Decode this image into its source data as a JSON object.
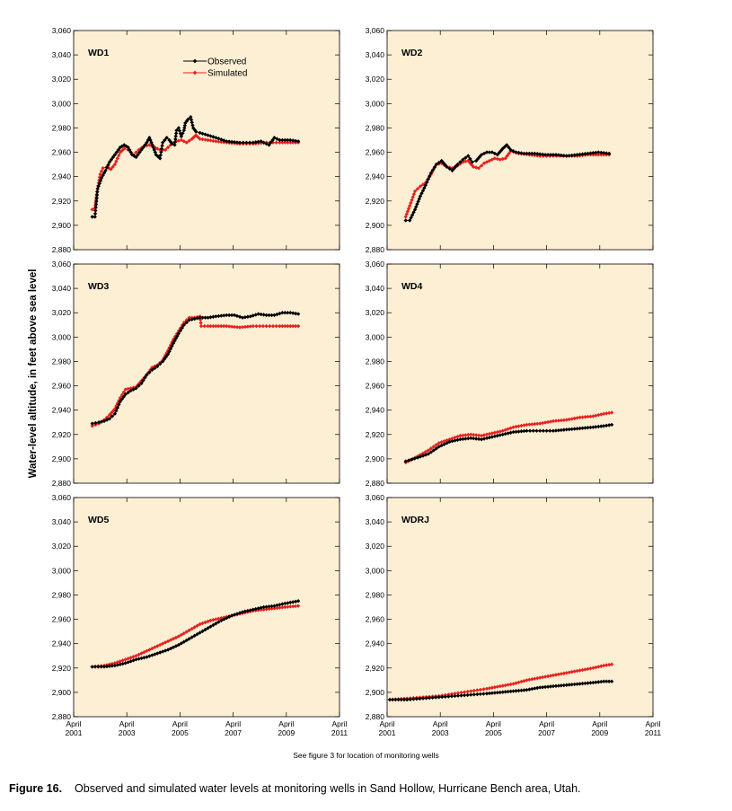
{
  "figure": {
    "ylabel": "Water-level altitude, in feet above sea level",
    "note": "See figure 3 for location of monitoring wells",
    "caption_number": "Figure 16.",
    "caption_text": "Observed and simulated water levels at monitoring wells in Sand Hollow, Hurricane Bench area, Utah."
  },
  "colors": {
    "observed": "#000000",
    "simulated": "#e8211e",
    "plot_bg": "#fcefd4",
    "frame": "#000000"
  },
  "chart_data": [
    {
      "type": "line",
      "title": "WD1",
      "xlim": [
        2001.25,
        2011.25
      ],
      "ylim": [
        2880,
        3060
      ],
      "yticks": [
        2880,
        2900,
        2920,
        2940,
        2960,
        2980,
        3000,
        3020,
        3040,
        3060
      ],
      "ytick_labels": [
        "2,880",
        "2,900",
        "2,920",
        "2,940",
        "2,960",
        "2,980",
        "3,000",
        "3,020",
        "3,040",
        "3,060"
      ],
      "legend": {
        "position": "top-center",
        "entries": [
          "Observed",
          "Simulated"
        ]
      },
      "series": [
        {
          "name": "Observed",
          "x": [
            2001.95,
            2002.05,
            2002.15,
            2002.3,
            2002.45,
            2002.6,
            2002.8,
            2003.0,
            2003.15,
            2003.3,
            2003.45,
            2003.6,
            2003.8,
            2004.0,
            2004.1,
            2004.25,
            2004.35,
            2004.5,
            2004.6,
            2004.75,
            2004.85,
            2004.95,
            2005.05,
            2005.12,
            2005.2,
            2005.3,
            2005.4,
            2005.45,
            2005.55,
            2005.65,
            2005.75,
            2005.85,
            2006.0,
            2006.3,
            2006.6,
            2007.0,
            2007.5,
            2008.0,
            2008.3,
            2008.5,
            2008.6,
            2008.8,
            2009.0,
            2009.4,
            2009.7
          ],
          "values": [
            2907,
            2907,
            2930,
            2939,
            2945,
            2952,
            2958,
            2964,
            2966,
            2964,
            2958,
            2956,
            2962,
            2968,
            2972,
            2964,
            2958,
            2955,
            2968,
            2972,
            2970,
            2967,
            2966,
            2978,
            2980,
            2973,
            2978,
            2984,
            2987,
            2989,
            2980,
            2977,
            2976,
            2974,
            2972,
            2969,
            2968,
            2968,
            2969,
            2967,
            2966,
            2972,
            2970,
            2970,
            2969
          ]
        },
        {
          "name": "Simulated",
          "x": [
            2001.95,
            2002.05,
            2002.15,
            2002.25,
            2002.35,
            2002.5,
            2002.65,
            2002.8,
            2003.0,
            2003.15,
            2003.3,
            2003.5,
            2003.7,
            2003.9,
            2004.1,
            2004.3,
            2004.5,
            2004.7,
            2004.9,
            2005.1,
            2005.3,
            2005.5,
            2005.7,
            2005.85,
            2006.0,
            2006.3,
            2006.6,
            2007.0,
            2007.5,
            2008.0,
            2008.5,
            2009.0,
            2009.4,
            2009.7
          ],
          "values": [
            2913,
            2914,
            2930,
            2942,
            2947,
            2948,
            2946,
            2950,
            2960,
            2963,
            2962,
            2958,
            2962,
            2965,
            2966,
            2964,
            2962,
            2962,
            2966,
            2969,
            2970,
            2968,
            2971,
            2974,
            2971,
            2970,
            2969,
            2968,
            2967,
            2967,
            2968,
            2968,
            2968,
            2968
          ]
        }
      ]
    },
    {
      "type": "line",
      "title": "WD2",
      "xlim": [
        2001.25,
        2011.25
      ],
      "ylim": [
        2880,
        3060
      ],
      "yticks": [
        2880,
        2900,
        2920,
        2940,
        2960,
        2980,
        3000,
        3020,
        3040,
        3060
      ],
      "ytick_labels": [
        "2,880",
        "2,900",
        "2,920",
        "2,940",
        "2,960",
        "2,980",
        "3,000",
        "3,020",
        "3,040",
        "3,060"
      ],
      "series": [
        {
          "name": "Observed",
          "x": [
            2001.95,
            2002.1,
            2002.3,
            2002.5,
            2002.7,
            2002.9,
            2003.1,
            2003.3,
            2003.5,
            2003.7,
            2003.9,
            2004.1,
            2004.3,
            2004.45,
            2004.6,
            2004.8,
            2005.0,
            2005.2,
            2005.4,
            2005.6,
            2005.75,
            2005.9,
            2006.1,
            2006.4,
            2006.8,
            2007.2,
            2007.6,
            2008.0,
            2008.4,
            2008.8,
            2009.2,
            2009.6
          ],
          "values": [
            2904,
            2904,
            2913,
            2924,
            2933,
            2943,
            2950,
            2953,
            2948,
            2945,
            2950,
            2954,
            2957,
            2952,
            2953,
            2958,
            2960,
            2960,
            2958,
            2963,
            2966,
            2962,
            2960,
            2959,
            2959,
            2958,
            2958,
            2957,
            2958,
            2959,
            2960,
            2959
          ]
        },
        {
          "name": "Simulated",
          "x": [
            2001.95,
            2002.1,
            2002.3,
            2002.5,
            2002.7,
            2002.9,
            2003.1,
            2003.3,
            2003.5,
            2003.7,
            2003.9,
            2004.1,
            2004.3,
            2004.5,
            2004.7,
            2004.9,
            2005.1,
            2005.3,
            2005.5,
            2005.7,
            2005.9,
            2006.2,
            2006.6,
            2007.0,
            2007.5,
            2008.0,
            2008.4,
            2008.8,
            2009.2,
            2009.6
          ],
          "values": [
            2907,
            2916,
            2928,
            2932,
            2935,
            2942,
            2950,
            2951,
            2948,
            2947,
            2949,
            2952,
            2953,
            2948,
            2947,
            2951,
            2953,
            2955,
            2954,
            2955,
            2961,
            2959,
            2958,
            2957,
            2957,
            2957,
            2957,
            2958,
            2958,
            2958
          ]
        }
      ]
    },
    {
      "type": "line",
      "title": "WD3",
      "xlim": [
        2001.25,
        2011.25
      ],
      "ylim": [
        2880,
        3060
      ],
      "yticks": [
        2880,
        2900,
        2920,
        2940,
        2960,
        2980,
        3000,
        3020,
        3040,
        3060
      ],
      "ytick_labels": [
        "2,880",
        "2,900",
        "2,920",
        "2,940",
        "2,960",
        "2,980",
        "3,000",
        "3,020",
        "3,040",
        "3,060"
      ],
      "series": [
        {
          "name": "Observed",
          "x": [
            2001.95,
            2002.2,
            2002.4,
            2002.6,
            2002.8,
            2003.0,
            2003.2,
            2003.4,
            2003.6,
            2003.8,
            2004.0,
            2004.2,
            2004.4,
            2004.6,
            2004.8,
            2005.0,
            2005.2,
            2005.4,
            2005.6,
            2005.8,
            2006.0,
            2006.3,
            2006.6,
            2007.0,
            2007.3,
            2007.6,
            2007.9,
            2008.2,
            2008.5,
            2008.8,
            2009.1,
            2009.4,
            2009.7
          ],
          "values": [
            2929,
            2930,
            2931,
            2933,
            2937,
            2947,
            2953,
            2956,
            2958,
            2962,
            2969,
            2973,
            2976,
            2980,
            2986,
            2995,
            3003,
            3010,
            3014,
            3015,
            3016,
            3016,
            3017,
            3018,
            3018,
            3016,
            3017,
            3019,
            3018,
            3018,
            3020,
            3020,
            3019
          ]
        },
        {
          "name": "Simulated",
          "x": [
            2001.95,
            2002.2,
            2002.4,
            2002.6,
            2002.8,
            2003.0,
            2003.2,
            2003.4,
            2003.6,
            2003.8,
            2004.0,
            2004.2,
            2004.4,
            2004.6,
            2004.8,
            2005.0,
            2005.2,
            2005.4,
            2005.6,
            2005.8,
            2006.0,
            2006.05,
            2006.3,
            2006.7,
            2007.0,
            2007.5,
            2008.0,
            2008.5,
            2009.0,
            2009.4,
            2009.7
          ],
          "values": [
            2927,
            2929,
            2932,
            2936,
            2941,
            2950,
            2957,
            2958,
            2959,
            2964,
            2969,
            2975,
            2977,
            2981,
            2989,
            2998,
            3005,
            3012,
            3016,
            3016,
            3017,
            3009,
            3009,
            3009,
            3009,
            3008,
            3009,
            3009,
            3009,
            3009,
            3009
          ]
        }
      ]
    },
    {
      "type": "line",
      "title": "WD4",
      "xlim": [
        2001.25,
        2011.25
      ],
      "ylim": [
        2880,
        3060
      ],
      "yticks": [
        2880,
        2900,
        2920,
        2940,
        2960,
        2980,
        3000,
        3020,
        3040,
        3060
      ],
      "ytick_labels": [
        "2,880",
        "2,900",
        "2,920",
        "2,940",
        "2,960",
        "2,980",
        "3,000",
        "3,020",
        "3,040",
        "3,060"
      ],
      "series": [
        {
          "name": "Observed",
          "x": [
            2001.95,
            2002.4,
            2002.8,
            2003.2,
            2003.6,
            2004.0,
            2004.4,
            2004.8,
            2005.2,
            2005.6,
            2006.0,
            2006.5,
            2007.0,
            2007.5,
            2008.0,
            2008.5,
            2009.0,
            2009.4,
            2009.7
          ],
          "values": [
            2898,
            2901,
            2904,
            2910,
            2914,
            2916,
            2917,
            2916,
            2918,
            2920,
            2922,
            2923,
            2923,
            2923,
            2924,
            2925,
            2926,
            2927,
            2928
          ]
        },
        {
          "name": "Simulated",
          "x": [
            2001.95,
            2002.4,
            2002.8,
            2003.2,
            2003.6,
            2004.0,
            2004.4,
            2004.8,
            2005.2,
            2005.6,
            2006.0,
            2006.5,
            2007.0,
            2007.5,
            2008.0,
            2008.5,
            2009.0,
            2009.4,
            2009.7
          ],
          "values": [
            2897,
            2902,
            2907,
            2913,
            2916,
            2919,
            2920,
            2919,
            2921,
            2923,
            2926,
            2928,
            2929,
            2931,
            2932,
            2934,
            2935,
            2937,
            2938
          ]
        }
      ]
    },
    {
      "type": "line",
      "title": "WD5",
      "xlim": [
        2001.25,
        2011.25
      ],
      "ylim": [
        2880,
        3060
      ],
      "yticks": [
        2880,
        2900,
        2920,
        2940,
        2960,
        2980,
        3000,
        3020,
        3040,
        3060
      ],
      "ytick_labels": [
        "2,880",
        "2,900",
        "2,920",
        "2,940",
        "2,960",
        "2,980",
        "3,000",
        "3,020",
        "3,040",
        "3,060"
      ],
      "series": [
        {
          "name": "Observed",
          "x": [
            2001.95,
            2002.4,
            2002.8,
            2003.2,
            2003.6,
            2004.0,
            2004.4,
            2004.8,
            2005.2,
            2005.6,
            2006.0,
            2006.4,
            2006.8,
            2007.2,
            2007.6,
            2008.0,
            2008.4,
            2008.8,
            2009.2,
            2009.7
          ],
          "values": [
            2921,
            2921,
            2922,
            2924,
            2927,
            2929,
            2932,
            2935,
            2939,
            2944,
            2949,
            2954,
            2959,
            2963,
            2966,
            2968,
            2970,
            2971,
            2973,
            2975
          ]
        },
        {
          "name": "Simulated",
          "x": [
            2001.95,
            2002.4,
            2002.8,
            2003.2,
            2003.6,
            2004.0,
            2004.4,
            2004.8,
            2005.2,
            2005.6,
            2006.0,
            2006.4,
            2006.8,
            2007.2,
            2007.6,
            2008.0,
            2008.4,
            2008.8,
            2009.2,
            2009.7
          ],
          "values": [
            2921,
            2922,
            2924,
            2927,
            2930,
            2934,
            2938,
            2942,
            2946,
            2951,
            2956,
            2959,
            2961,
            2963,
            2965,
            2967,
            2968,
            2969,
            2970,
            2971
          ]
        }
      ]
    },
    {
      "type": "line",
      "title": "WDRJ",
      "xlim": [
        2001.25,
        2011.25
      ],
      "ylim": [
        2880,
        3060
      ],
      "yticks": [
        2880,
        2900,
        2920,
        2940,
        2960,
        2980,
        3000,
        3020,
        3040,
        3060
      ],
      "ytick_labels": [
        "2,880",
        "2,900",
        "2,920",
        "2,940",
        "2,960",
        "2,980",
        "3,000",
        "3,020",
        "3,040",
        "3,060"
      ],
      "series": [
        {
          "name": "Observed",
          "x": [
            2001.35,
            2002.0,
            2002.6,
            2003.2,
            2003.8,
            2004.4,
            2005.0,
            2005.5,
            2006.0,
            2006.5,
            2007.0,
            2007.5,
            2008.0,
            2008.5,
            2009.0,
            2009.4,
            2009.7
          ],
          "values": [
            2894,
            2894,
            2895,
            2896,
            2897,
            2898,
            2899,
            2900,
            2901,
            2902,
            2904,
            2905,
            2906,
            2907,
            2908,
            2909,
            2909
          ]
        },
        {
          "name": "Simulated",
          "x": [
            2001.35,
            2002.0,
            2002.6,
            2003.2,
            2003.8,
            2004.4,
            2005.0,
            2005.5,
            2006.0,
            2006.5,
            2007.0,
            2007.5,
            2008.0,
            2008.5,
            2009.0,
            2009.4,
            2009.7
          ],
          "values": [
            2894,
            2895,
            2896,
            2897,
            2899,
            2901,
            2903,
            2905,
            2907,
            2910,
            2912,
            2914,
            2916,
            2918,
            2920,
            2922,
            2923
          ]
        }
      ]
    }
  ],
  "x_axis": {
    "ticks": [
      2001.25,
      2003.25,
      2005.25,
      2007.25,
      2009.25,
      2011.25
    ],
    "tick_labels": [
      [
        "April",
        "2001"
      ],
      [
        "April",
        "2003"
      ],
      [
        "April",
        "2005"
      ],
      [
        "April",
        "2007"
      ],
      [
        "April",
        "2009"
      ],
      [
        "April",
        "2011"
      ]
    ]
  }
}
